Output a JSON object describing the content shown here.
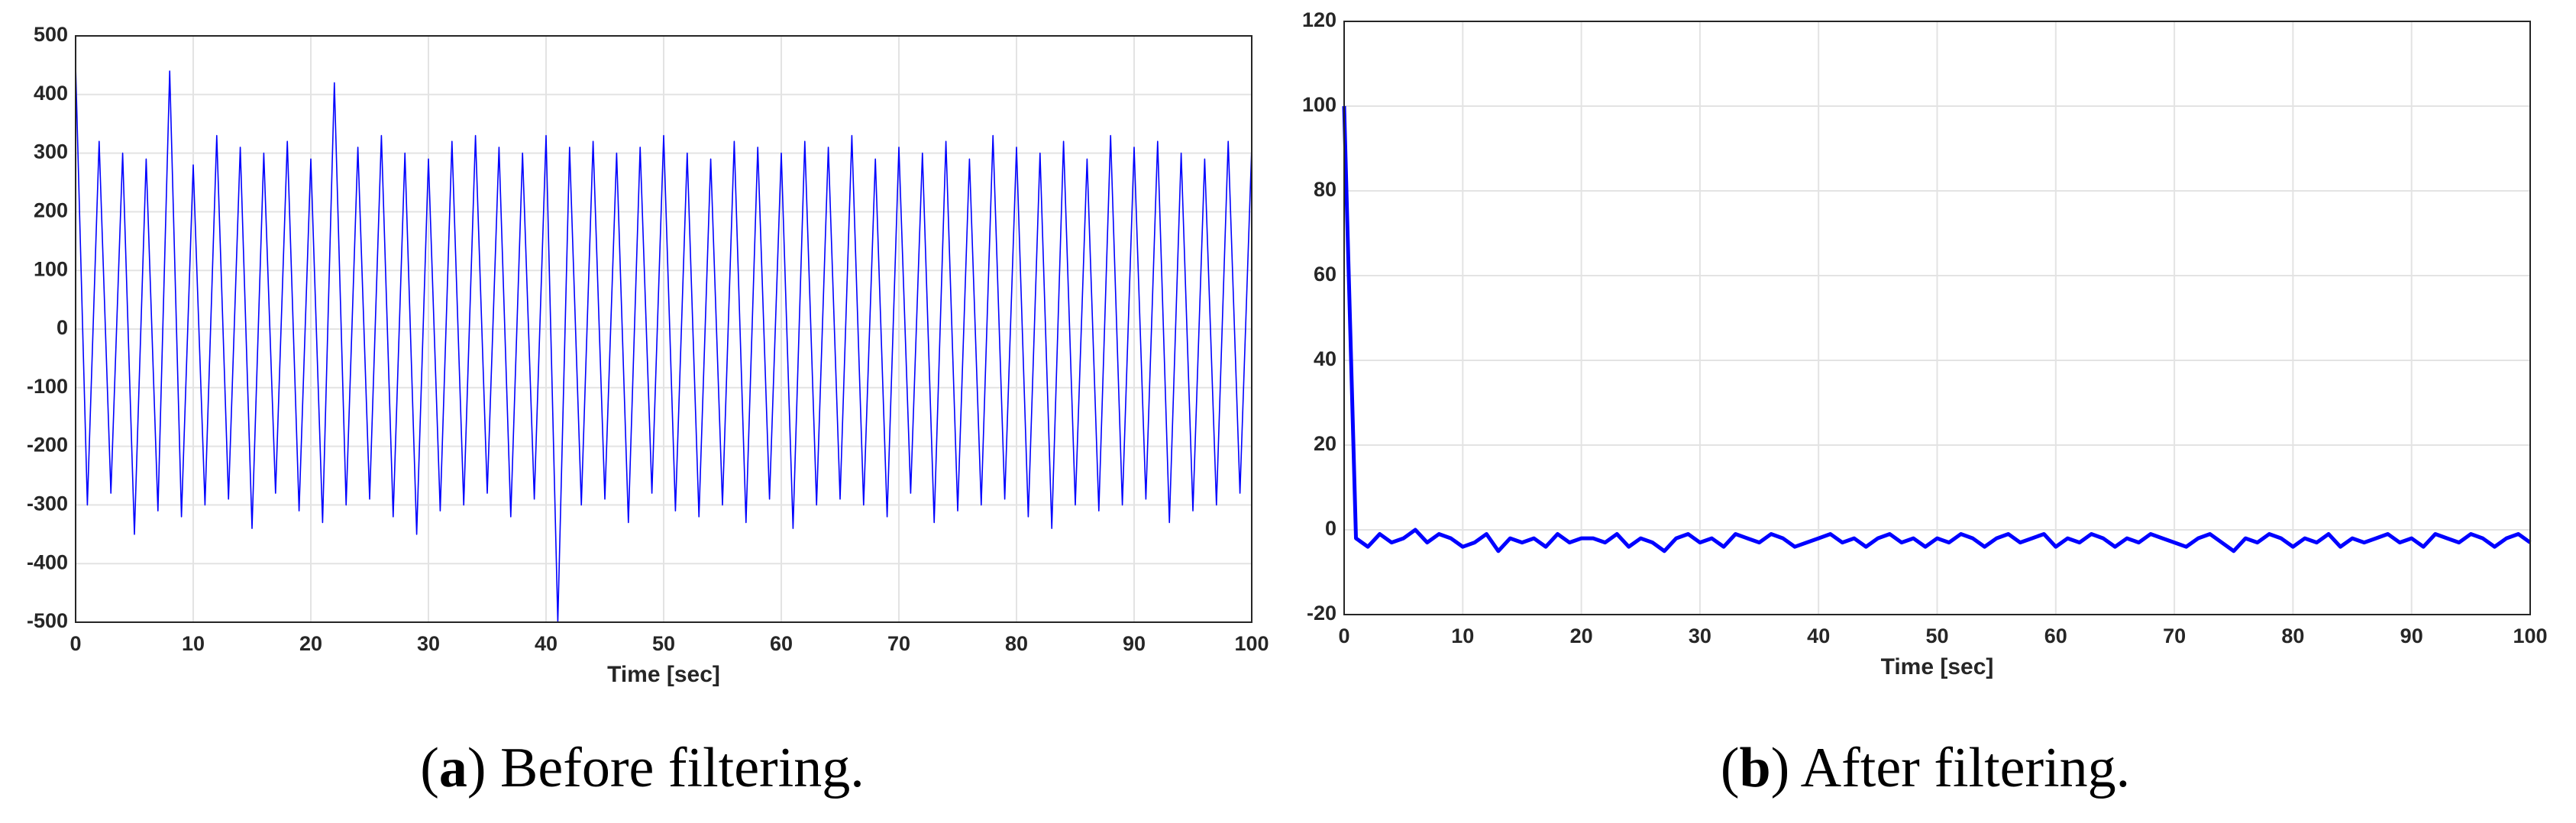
{
  "chart_data": [
    {
      "type": "line",
      "xlabel": "Time [sec]",
      "caption_parts": [
        "(",
        "a",
        ") Before filtering."
      ],
      "x": [
        0,
        1,
        2,
        3,
        4,
        5,
        6,
        7,
        8,
        9,
        10,
        11,
        12,
        13,
        14,
        15,
        16,
        17,
        18,
        19,
        20,
        21,
        22,
        23,
        24,
        25,
        26,
        27,
        28,
        29,
        30,
        31,
        32,
        33,
        34,
        35,
        36,
        37,
        38,
        39,
        40,
        41,
        42,
        43,
        44,
        45,
        46,
        47,
        48,
        49,
        50,
        51,
        52,
        53,
        54,
        55,
        56,
        57,
        58,
        59,
        60,
        61,
        62,
        63,
        64,
        65,
        66,
        67,
        68,
        69,
        70,
        71,
        72,
        73,
        74,
        75,
        76,
        77,
        78,
        79,
        80,
        81,
        82,
        83,
        84,
        85,
        86,
        87,
        88,
        89,
        90,
        91,
        92,
        93,
        94,
        95,
        96,
        97,
        98,
        99,
        100
      ],
      "series": [
        {
          "color": "#0000ff",
          "values": [
            450,
            -300,
            320,
            -280,
            300,
            -350,
            290,
            -310,
            440,
            -320,
            280,
            -300,
            330,
            -290,
            310,
            -340,
            300,
            -280,
            320,
            -310,
            290,
            -330,
            420,
            -300,
            310,
            -290,
            330,
            -320,
            300,
            -350,
            290,
            -310,
            320,
            -300,
            330,
            -280,
            310,
            -320,
            300,
            -290,
            330,
            -500,
            310,
            -300,
            320,
            -290,
            300,
            -330,
            310,
            -280,
            330,
            -310,
            300,
            -320,
            290,
            -300,
            320,
            -330,
            310,
            -290,
            300,
            -340,
            320,
            -300,
            310,
            -290,
            330,
            -300,
            290,
            -320,
            310,
            -280,
            300,
            -330,
            320,
            -310,
            290,
            -300,
            330,
            -290,
            310,
            -320,
            300,
            -340,
            320,
            -300,
            290,
            -310,
            330,
            -300,
            310,
            -290,
            320,
            -330,
            300,
            -310,
            290,
            -300,
            320,
            -280,
            310
          ]
        }
      ],
      "xlim": [
        0,
        100
      ],
      "xticks": [
        0,
        10,
        20,
        30,
        40,
        50,
        60,
        70,
        80,
        90,
        100
      ],
      "ylim": [
        -500,
        500
      ],
      "yticks": [
        -500,
        -400,
        -300,
        -200,
        -100,
        0,
        100,
        200,
        300,
        400,
        500
      ],
      "grid": true
    },
    {
      "type": "line",
      "xlabel": "Time [sec]",
      "caption_parts": [
        "(",
        "b",
        ") After filtering."
      ],
      "x": [
        0,
        1,
        2,
        3,
        4,
        5,
        6,
        7,
        8,
        9,
        10,
        11,
        12,
        13,
        14,
        15,
        16,
        17,
        18,
        19,
        20,
        21,
        22,
        23,
        24,
        25,
        26,
        27,
        28,
        29,
        30,
        31,
        32,
        33,
        34,
        35,
        36,
        37,
        38,
        39,
        40,
        41,
        42,
        43,
        44,
        45,
        46,
        47,
        48,
        49,
        50,
        51,
        52,
        53,
        54,
        55,
        56,
        57,
        58,
        59,
        60,
        61,
        62,
        63,
        64,
        65,
        66,
        67,
        68,
        69,
        70,
        71,
        72,
        73,
        74,
        75,
        76,
        77,
        78,
        79,
        80,
        81,
        82,
        83,
        84,
        85,
        86,
        87,
        88,
        89,
        90,
        91,
        92,
        93,
        94,
        95,
        96,
        97,
        98,
        99,
        100
      ],
      "series": [
        {
          "color": "#0000ff",
          "values": [
            100,
            -2,
            -4,
            -1,
            -3,
            -2,
            0,
            -3,
            -1,
            -2,
            -4,
            -3,
            -1,
            -5,
            -2,
            -3,
            -2,
            -4,
            -1,
            -3,
            -2,
            -2,
            -3,
            -1,
            -4,
            -2,
            -3,
            -5,
            -2,
            -1,
            -3,
            -2,
            -4,
            -1,
            -2,
            -3,
            -1,
            -2,
            -4,
            -3,
            -2,
            -1,
            -3,
            -2,
            -4,
            -2,
            -1,
            -3,
            -2,
            -4,
            -2,
            -3,
            -1,
            -2,
            -4,
            -2,
            -1,
            -3,
            -2,
            -1,
            -4,
            -2,
            -3,
            -1,
            -2,
            -4,
            -2,
            -3,
            -1,
            -2,
            -3,
            -4,
            -2,
            -1,
            -3,
            -5,
            -2,
            -3,
            -1,
            -2,
            -4,
            -2,
            -3,
            -1,
            -4,
            -2,
            -3,
            -2,
            -1,
            -3,
            -2,
            -4,
            -1,
            -2,
            -3,
            -1,
            -2,
            -4,
            -2,
            -1,
            -3
          ]
        }
      ],
      "xlim": [
        0,
        100
      ],
      "xticks": [
        0,
        10,
        20,
        30,
        40,
        50,
        60,
        70,
        80,
        90,
        100
      ],
      "ylim": [
        -20,
        120
      ],
      "yticks": [
        -20,
        0,
        20,
        40,
        60,
        80,
        100,
        120
      ],
      "grid": true
    }
  ]
}
